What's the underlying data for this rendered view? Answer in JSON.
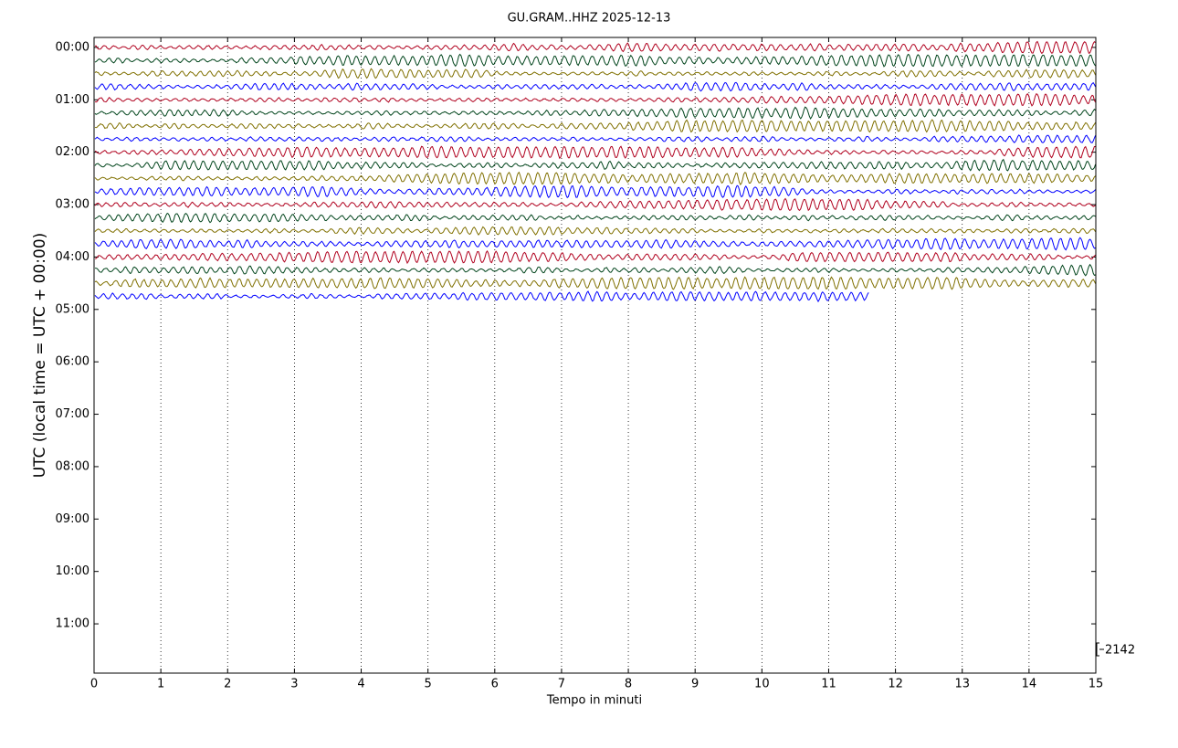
{
  "chart_data": {
    "type": "helicorder",
    "title": "GU.GRAM..HHZ 2025-12-13",
    "xlabel": "Tempo in minuti",
    "ylabel": "UTC (local time = UTC + 00:00)",
    "xlim": [
      0,
      15
    ],
    "xticks": [
      0,
      1,
      2,
      3,
      4,
      5,
      6,
      7,
      8,
      9,
      10,
      11,
      12,
      13,
      14,
      15
    ],
    "ylim": [
      -0.19,
      11.94
    ],
    "yticks": [
      {
        "value": 0,
        "label": "00:00"
      },
      {
        "value": 1,
        "label": "01:00"
      },
      {
        "value": 2,
        "label": "02:00"
      },
      {
        "value": 3,
        "label": "03:00"
      },
      {
        "value": 4,
        "label": "04:00"
      },
      {
        "value": 5,
        "label": "05:00"
      },
      {
        "value": 6,
        "label": "06:00"
      },
      {
        "value": 7,
        "label": "07:00"
      },
      {
        "value": 8,
        "label": "08:00"
      },
      {
        "value": 9,
        "label": "09:00"
      },
      {
        "value": 10,
        "label": "10:00"
      },
      {
        "value": 11,
        "label": "11:00"
      }
    ],
    "grid": true,
    "scale": 2142,
    "traces": [
      {
        "y": 0,
        "color": "#b0001e",
        "x_end": 15
      },
      {
        "y": 0.25,
        "color": "#00441b",
        "x_end": 15
      },
      {
        "y": 0.5,
        "color": "#807000",
        "x_end": 15
      },
      {
        "y": 0.75,
        "color": "#0000ff",
        "x_end": 15
      },
      {
        "y": 1,
        "color": "#b0001e",
        "x_end": 15
      },
      {
        "y": 1.25,
        "color": "#00441b",
        "x_end": 15
      },
      {
        "y": 1.5,
        "color": "#807000",
        "x_end": 15
      },
      {
        "y": 1.75,
        "color": "#0000ff",
        "x_end": 15
      },
      {
        "y": 2,
        "color": "#b0001e",
        "x_end": 15
      },
      {
        "y": 2.25,
        "color": "#00441b",
        "x_end": 15
      },
      {
        "y": 2.5,
        "color": "#807000",
        "x_end": 15
      },
      {
        "y": 2.75,
        "color": "#0000ff",
        "x_end": 15
      },
      {
        "y": 3,
        "color": "#b0001e",
        "x_end": 15
      },
      {
        "y": 3.25,
        "color": "#00441b",
        "x_end": 15
      },
      {
        "y": 3.5,
        "color": "#807000",
        "x_end": 15
      },
      {
        "y": 3.75,
        "color": "#0000ff",
        "x_end": 15
      },
      {
        "y": 4,
        "color": "#b0001e",
        "x_end": 15
      },
      {
        "y": 4.25,
        "color": "#00441b",
        "x_end": 15
      },
      {
        "y": 4.5,
        "color": "#807000",
        "x_end": 15
      },
      {
        "y": 4.75,
        "color": "#0000ff",
        "x_end": 11.6
      }
    ]
  }
}
